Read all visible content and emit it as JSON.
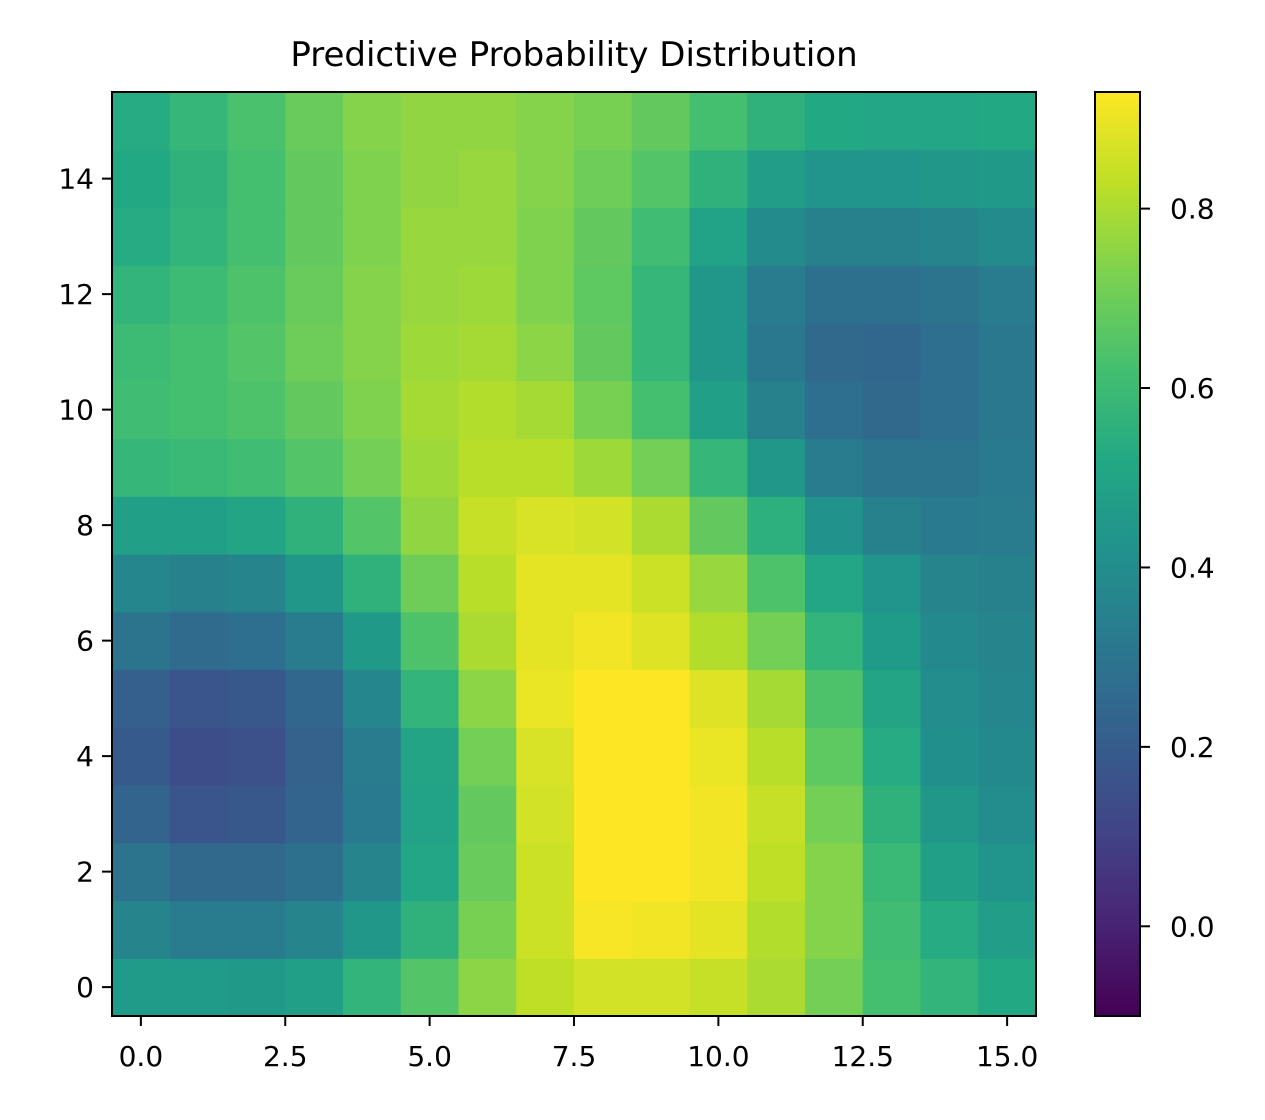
{
  "chart_data": {
    "type": "heatmap",
    "title": "Predictive Probability Distribution",
    "xlabel": "",
    "ylabel": "",
    "xlim": [
      -0.5,
      15.5
    ],
    "ylim": [
      -0.5,
      15.5
    ],
    "x_ticks": [
      0.0,
      2.5,
      5.0,
      7.5,
      10.0,
      12.5,
      15.0
    ],
    "x_tick_labels": [
      "0.0",
      "2.5",
      "5.0",
      "7.5",
      "10.0",
      "12.5",
      "15.0"
    ],
    "y_ticks": [
      0,
      2,
      4,
      6,
      8,
      10,
      12,
      14
    ],
    "y_tick_labels": [
      "0",
      "2",
      "4",
      "6",
      "8",
      "10",
      "12",
      "14"
    ],
    "origin": "lower",
    "colormap": "viridis",
    "colorbar": {
      "vmin": -0.1,
      "vmax": 0.93,
      "ticks": [
        0.0,
        0.2,
        0.4,
        0.6,
        0.8
      ],
      "tick_labels": [
        "0.0",
        "0.2",
        "0.4",
        "0.6",
        "0.8"
      ]
    },
    "grid": false,
    "z": [
      [
        0.46,
        0.46,
        0.45,
        0.48,
        0.57,
        0.65,
        0.75,
        0.83,
        0.86,
        0.86,
        0.84,
        0.8,
        0.71,
        0.62,
        0.57,
        0.52
      ],
      [
        0.36,
        0.33,
        0.33,
        0.36,
        0.44,
        0.56,
        0.72,
        0.85,
        0.92,
        0.91,
        0.89,
        0.81,
        0.74,
        0.61,
        0.53,
        0.47
      ],
      [
        0.29,
        0.25,
        0.25,
        0.28,
        0.36,
        0.51,
        0.69,
        0.85,
        0.93,
        0.93,
        0.91,
        0.83,
        0.74,
        0.59,
        0.48,
        0.43
      ],
      [
        0.23,
        0.17,
        0.18,
        0.23,
        0.32,
        0.49,
        0.68,
        0.86,
        0.93,
        0.93,
        0.91,
        0.84,
        0.71,
        0.56,
        0.44,
        0.4
      ],
      [
        0.19,
        0.14,
        0.15,
        0.22,
        0.33,
        0.5,
        0.71,
        0.87,
        0.94,
        0.93,
        0.9,
        0.82,
        0.67,
        0.53,
        0.41,
        0.38
      ],
      [
        0.21,
        0.17,
        0.18,
        0.24,
        0.37,
        0.57,
        0.75,
        0.9,
        0.94,
        0.93,
        0.88,
        0.79,
        0.64,
        0.5,
        0.4,
        0.37
      ],
      [
        0.29,
        0.26,
        0.27,
        0.33,
        0.45,
        0.64,
        0.8,
        0.89,
        0.91,
        0.88,
        0.81,
        0.71,
        0.57,
        0.46,
        0.38,
        0.36
      ],
      [
        0.37,
        0.35,
        0.36,
        0.44,
        0.56,
        0.7,
        0.82,
        0.89,
        0.89,
        0.85,
        0.77,
        0.64,
        0.51,
        0.43,
        0.36,
        0.35
      ],
      [
        0.48,
        0.48,
        0.5,
        0.56,
        0.65,
        0.76,
        0.84,
        0.87,
        0.86,
        0.8,
        0.68,
        0.55,
        0.42,
        0.35,
        0.32,
        0.33
      ],
      [
        0.58,
        0.59,
        0.61,
        0.65,
        0.71,
        0.78,
        0.82,
        0.82,
        0.78,
        0.71,
        0.58,
        0.44,
        0.33,
        0.29,
        0.29,
        0.32
      ],
      [
        0.61,
        0.62,
        0.64,
        0.68,
        0.73,
        0.79,
        0.81,
        0.79,
        0.72,
        0.62,
        0.48,
        0.35,
        0.27,
        0.25,
        0.27,
        0.31
      ],
      [
        0.6,
        0.62,
        0.65,
        0.7,
        0.74,
        0.78,
        0.79,
        0.75,
        0.68,
        0.58,
        0.44,
        0.31,
        0.25,
        0.24,
        0.27,
        0.31
      ],
      [
        0.57,
        0.6,
        0.64,
        0.69,
        0.74,
        0.77,
        0.78,
        0.73,
        0.67,
        0.58,
        0.44,
        0.33,
        0.28,
        0.28,
        0.29,
        0.33
      ],
      [
        0.53,
        0.57,
        0.62,
        0.68,
        0.73,
        0.77,
        0.77,
        0.73,
        0.68,
        0.61,
        0.49,
        0.39,
        0.35,
        0.35,
        0.36,
        0.39
      ],
      [
        0.52,
        0.56,
        0.62,
        0.68,
        0.73,
        0.76,
        0.77,
        0.74,
        0.7,
        0.65,
        0.56,
        0.47,
        0.43,
        0.43,
        0.44,
        0.45
      ],
      [
        0.53,
        0.58,
        0.63,
        0.69,
        0.74,
        0.76,
        0.76,
        0.74,
        0.72,
        0.68,
        0.62,
        0.56,
        0.52,
        0.51,
        0.51,
        0.52
      ]
    ]
  }
}
